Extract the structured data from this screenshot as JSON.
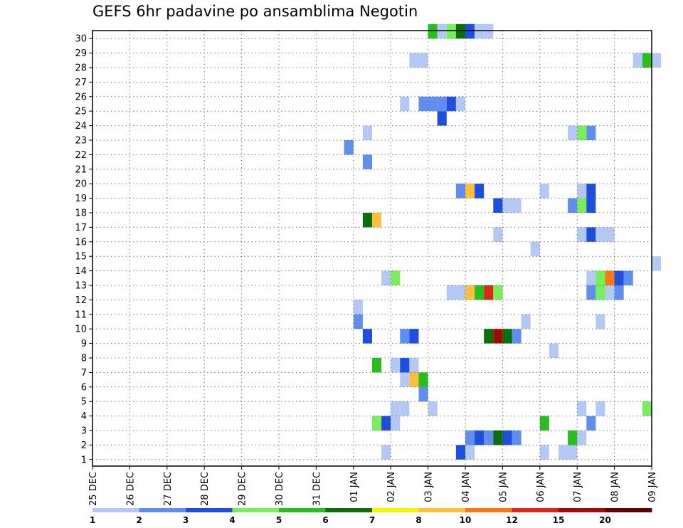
{
  "chart_data": {
    "type": "heatmap",
    "title": "GEFS 6hr padavine po ansamblima Negotin",
    "xlabel": "",
    "ylabel": "",
    "x_ticks": [
      "25 DEC",
      "26 DEC",
      "27 DEC",
      "28 DEC",
      "29 DEC",
      "30 DEC",
      "31 DEC",
      "01 JAN",
      "02 JAN",
      "03 JAN",
      "04 JAN",
      "05 JAN",
      "06 JAN",
      "07 JAN",
      "08 JAN",
      "09 JAN"
    ],
    "y_ticks": [
      "1",
      "2",
      "3",
      "4",
      "5",
      "6",
      "7",
      "8",
      "9",
      "10",
      "11",
      "12",
      "13",
      "14",
      "15",
      "16",
      "17",
      "18",
      "19",
      "20",
      "21",
      "22",
      "23",
      "24",
      "25",
      "26",
      "27",
      "28",
      "29",
      "30"
    ],
    "xlim_days": [
      0,
      15
    ],
    "ylim_members": [
      0,
      30
    ],
    "grid": true,
    "colorbar": {
      "labels": [
        "1",
        "2",
        "3",
        "4",
        "5",
        "6",
        "7",
        "8",
        "10",
        "12",
        "15",
        "20"
      ],
      "colors": [
        "#b4c8f5",
        "#5f8ef0",
        "#1e4ede",
        "#78ee5a",
        "#28be1e",
        "#0a6e0a",
        "#f5f500",
        "#ffbe3c",
        "#fa7814",
        "#dc2814",
        "#a00a0a",
        "#640000"
      ]
    },
    "cells": [
      {
        "m": 1,
        "t": "01 JAN 18z",
        "c": 1
      },
      {
        "m": 1,
        "t": "03 JAN 18z",
        "c": 3
      },
      {
        "m": 1,
        "t": "04 JAN 00z",
        "c": 1
      },
      {
        "m": 1,
        "t": "06 JAN 00z",
        "c": 1
      },
      {
        "m": 1,
        "t": "06 JAN 12z",
        "c": 1
      },
      {
        "m": 1,
        "t": "06 JAN 18z",
        "c": 1
      },
      {
        "m": 2,
        "t": "04 JAN 00z",
        "c": 2
      },
      {
        "m": 2,
        "t": "04 JAN 06z",
        "c": 3
      },
      {
        "m": 2,
        "t": "04 JAN 12z",
        "c": 2
      },
      {
        "m": 2,
        "t": "04 JAN 18z",
        "c": 6
      },
      {
        "m": 2,
        "t": "05 JAN 00z",
        "c": 3
      },
      {
        "m": 2,
        "t": "05 JAN 06z",
        "c": 2
      },
      {
        "m": 2,
        "t": "06 JAN 18z",
        "c": 5
      },
      {
        "m": 2,
        "t": "07 JAN 00z",
        "c": 1
      },
      {
        "m": 3,
        "t": "01 JAN 12z",
        "c": 4
      },
      {
        "m": 3,
        "t": "01 JAN 18z",
        "c": 3
      },
      {
        "m": 3,
        "t": "02 JAN 00z",
        "c": 1
      },
      {
        "m": 3,
        "t": "06 JAN 00z",
        "c": 5
      },
      {
        "m": 3,
        "t": "07 JAN 06z",
        "c": 2
      },
      {
        "m": 4,
        "t": "02 JAN 00z",
        "c": 1
      },
      {
        "m": 4,
        "t": "02 JAN 06z",
        "c": 1
      },
      {
        "m": 4,
        "t": "03 JAN 00z",
        "c": 1
      },
      {
        "m": 4,
        "t": "07 JAN 00z",
        "c": 1
      },
      {
        "m": 4,
        "t": "07 JAN 12z",
        "c": 1
      },
      {
        "m": 4,
        "t": "08 JAN 18z",
        "c": 4
      },
      {
        "m": 5,
        "t": "02 JAN 18z",
        "c": 2
      },
      {
        "m": 6,
        "t": "02 JAN 06z",
        "c": 1
      },
      {
        "m": 6,
        "t": "02 JAN 12z",
        "c": 8
      },
      {
        "m": 6,
        "t": "02 JAN 18z",
        "c": 5
      },
      {
        "m": 7,
        "t": "01 JAN 12z",
        "c": 5
      },
      {
        "m": 7,
        "t": "02 JAN 00z",
        "c": 1
      },
      {
        "m": 7,
        "t": "02 JAN 06z",
        "c": 3
      },
      {
        "m": 7,
        "t": "02 JAN 12z",
        "c": 1
      },
      {
        "m": 8,
        "t": "06 JAN 06z",
        "c": 1
      },
      {
        "m": 9,
        "t": "01 JAN 06z",
        "c": 3
      },
      {
        "m": 9,
        "t": "02 JAN 06z",
        "c": 2
      },
      {
        "m": 9,
        "t": "02 JAN 12z",
        "c": 3
      },
      {
        "m": 9,
        "t": "04 JAN 12z",
        "c": 6
      },
      {
        "m": 9,
        "t": "04 JAN 18z",
        "c": 11
      },
      {
        "m": 9,
        "t": "05 JAN 00z",
        "c": 6
      },
      {
        "m": 9,
        "t": "05 JAN 06z",
        "c": 2
      },
      {
        "m": 10,
        "t": "01 JAN 00z",
        "c": 2
      },
      {
        "m": 10,
        "t": "05 JAN 12z",
        "c": 1
      },
      {
        "m": 10,
        "t": "07 JAN 12z",
        "c": 1
      },
      {
        "m": 11,
        "t": "01 JAN 00z",
        "c": 1
      },
      {
        "m": 12,
        "t": "03 JAN 12z",
        "c": 1
      },
      {
        "m": 12,
        "t": "03 JAN 18z",
        "c": 1
      },
      {
        "m": 12,
        "t": "04 JAN 00z",
        "c": 8
      },
      {
        "m": 12,
        "t": "04 JAN 06z",
        "c": 5
      },
      {
        "m": 12,
        "t": "04 JAN 12z",
        "c": 10
      },
      {
        "m": 12,
        "t": "04 JAN 18z",
        "c": 4
      },
      {
        "m": 12,
        "t": "07 JAN 06z",
        "c": 2
      },
      {
        "m": 12,
        "t": "07 JAN 12z",
        "c": 4
      },
      {
        "m": 12,
        "t": "07 JAN 18z",
        "c": 1
      },
      {
        "m": 12,
        "t": "08 JAN 00z",
        "c": 2
      },
      {
        "m": 13,
        "t": "01 JAN 18z",
        "c": 1
      },
      {
        "m": 13,
        "t": "02 JAN 00z",
        "c": 4
      },
      {
        "m": 13,
        "t": "07 JAN 06z",
        "c": 1
      },
      {
        "m": 13,
        "t": "07 JAN 12z",
        "c": 4
      },
      {
        "m": 13,
        "t": "07 JAN 18z",
        "c": 9
      },
      {
        "m": 13,
        "t": "08 JAN 00z",
        "c": 3
      },
      {
        "m": 13,
        "t": "08 JAN 06z",
        "c": 2
      },
      {
        "m": 14,
        "t": "09 JAN 00z",
        "c": 1
      },
      {
        "m": 15,
        "t": "05 JAN 18z",
        "c": 1
      },
      {
        "m": 16,
        "t": "04 JAN 18z",
        "c": 1
      },
      {
        "m": 16,
        "t": "07 JAN 00z",
        "c": 1
      },
      {
        "m": 16,
        "t": "07 JAN 06z",
        "c": 3
      },
      {
        "m": 16,
        "t": "07 JAN 12z",
        "c": 1
      },
      {
        "m": 16,
        "t": "07 JAN 18z",
        "c": 1
      },
      {
        "m": 17,
        "t": "01 JAN 06z",
        "c": 6
      },
      {
        "m": 17,
        "t": "01 JAN 12z",
        "c": 8
      },
      {
        "m": 18,
        "t": "04 JAN 18z",
        "c": 3
      },
      {
        "m": 18,
        "t": "05 JAN 00z",
        "c": 1
      },
      {
        "m": 18,
        "t": "05 JAN 06z",
        "c": 1
      },
      {
        "m": 18,
        "t": "06 JAN 18z",
        "c": 2
      },
      {
        "m": 18,
        "t": "07 JAN 00z",
        "c": 4
      },
      {
        "m": 18,
        "t": "07 JAN 06z",
        "c": 3
      },
      {
        "m": 19,
        "t": "03 JAN 18z",
        "c": 2
      },
      {
        "m": 19,
        "t": "04 JAN 00z",
        "c": 8
      },
      {
        "m": 19,
        "t": "04 JAN 06z",
        "c": 3
      },
      {
        "m": 19,
        "t": "06 JAN 00z",
        "c": 1
      },
      {
        "m": 19,
        "t": "07 JAN 00z",
        "c": 1
      },
      {
        "m": 19,
        "t": "07 JAN 06z",
        "c": 3
      },
      {
        "m": 21,
        "t": "01 JAN 06z",
        "c": 2
      },
      {
        "m": 22,
        "t": "00 JAN 18z",
        "c": 2
      },
      {
        "m": 23,
        "t": "01 JAN 06z",
        "c": 1
      },
      {
        "m": 23,
        "t": "06 JAN 18z",
        "c": 1
      },
      {
        "m": 23,
        "t": "07 JAN 00z",
        "c": 4
      },
      {
        "m": 23,
        "t": "07 JAN 06z",
        "c": 2
      },
      {
        "m": 24,
        "t": "03 JAN 06z",
        "c": 3
      },
      {
        "m": 25,
        "t": "02 JAN 06z",
        "c": 1
      },
      {
        "m": 25,
        "t": "02 JAN 18z",
        "c": 2
      },
      {
        "m": 25,
        "t": "03 JAN 00z",
        "c": 2
      },
      {
        "m": 25,
        "t": "03 JAN 06z",
        "c": 2
      },
      {
        "m": 25,
        "t": "03 JAN 12z",
        "c": 3
      },
      {
        "m": 25,
        "t": "03 JAN 18z",
        "c": 1
      },
      {
        "m": 28,
        "t": "02 JAN 12z",
        "c": 1
      },
      {
        "m": 28,
        "t": "02 JAN 18z",
        "c": 1
      },
      {
        "m": 28,
        "t": "08 JAN 12z",
        "c": 1
      },
      {
        "m": 28,
        "t": "08 JAN 18z",
        "c": 5
      },
      {
        "m": 28,
        "t": "09 JAN 00z",
        "c": 1
      },
      {
        "m": 30,
        "t": "03 JAN 00z",
        "c": 5
      },
      {
        "m": 30,
        "t": "03 JAN 06z",
        "c": 1
      },
      {
        "m": 30,
        "t": "03 JAN 12z",
        "c": 4
      },
      {
        "m": 30,
        "t": "03 JAN 18z",
        "c": 6
      },
      {
        "m": 30,
        "t": "04 JAN 00z",
        "c": 3
      },
      {
        "m": 30,
        "t": "04 JAN 06z",
        "c": 1
      },
      {
        "m": 30,
        "t": "04 JAN 12z",
        "c": 1
      }
    ]
  }
}
